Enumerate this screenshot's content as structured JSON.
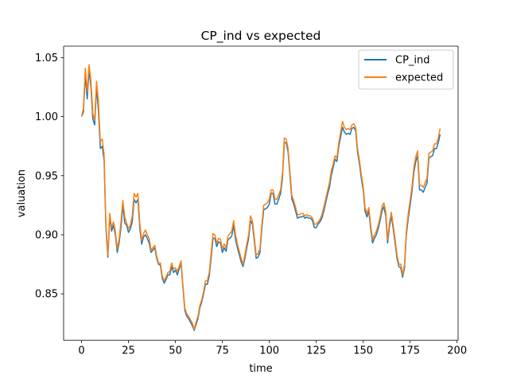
{
  "chart_data": {
    "type": "line",
    "title": "CP_ind vs expected",
    "xlabel": "time",
    "ylabel": "valuation",
    "xlim": [
      -9.55,
      200.55
    ],
    "ylim": [
      0.8106,
      1.0597
    ],
    "x_ticks": [
      0,
      25,
      50,
      75,
      100,
      125,
      150,
      175,
      200
    ],
    "x_tick_labels": [
      "0",
      "25",
      "50",
      "75",
      "100",
      "125",
      "150",
      "175",
      "200"
    ],
    "y_ticks": [
      0.85,
      0.9,
      0.95,
      1.0,
      1.05
    ],
    "y_tick_labels": [
      "0.85",
      "0.90",
      "0.95",
      "1.00",
      "1.05"
    ],
    "grid": false,
    "legend_position": "top-right",
    "x": [
      0,
      1,
      2,
      3,
      4,
      5,
      6,
      7,
      8,
      9,
      10,
      11,
      12,
      13,
      14,
      15,
      16,
      17,
      18,
      19,
      20,
      21,
      22,
      23,
      24,
      25,
      26,
      27,
      28,
      29,
      30,
      31,
      32,
      33,
      34,
      35,
      36,
      37,
      38,
      39,
      40,
      41,
      42,
      43,
      44,
      45,
      46,
      47,
      48,
      49,
      50,
      51,
      52,
      53,
      54,
      55,
      56,
      57,
      58,
      59,
      60,
      61,
      62,
      63,
      64,
      65,
      66,
      67,
      68,
      69,
      70,
      71,
      72,
      73,
      74,
      75,
      76,
      77,
      78,
      79,
      80,
      81,
      82,
      83,
      84,
      85,
      86,
      87,
      88,
      89,
      90,
      91,
      92,
      93,
      94,
      95,
      96,
      97,
      98,
      99,
      100,
      101,
      102,
      103,
      104,
      105,
      106,
      107,
      108,
      109,
      110,
      111,
      112,
      113,
      114,
      115,
      116,
      117,
      118,
      119,
      120,
      121,
      122,
      123,
      124,
      125,
      126,
      127,
      128,
      129,
      130,
      131,
      132,
      133,
      134,
      135,
      136,
      137,
      138,
      139,
      140,
      141,
      142,
      143,
      144,
      145,
      146,
      147,
      148,
      149,
      150,
      151,
      152,
      153,
      154,
      155,
      156,
      157,
      158,
      159,
      160,
      161,
      162,
      163,
      164,
      165,
      166,
      167,
      168,
      169,
      170,
      171,
      172,
      173,
      174,
      175,
      176,
      177,
      178,
      179,
      180,
      181,
      182,
      183,
      184,
      185,
      186,
      187,
      188,
      189,
      190,
      191
    ],
    "series": [
      {
        "name": "CP_ind",
        "color": "#1f77b4",
        "values": [
          1.0,
          1.004,
          1.035,
          1.015,
          1.04,
          1.025,
          0.998,
          0.993,
          1.025,
          1.005,
          0.973,
          0.975,
          0.963,
          0.905,
          0.881,
          0.915,
          0.903,
          0.908,
          0.9,
          0.885,
          0.893,
          0.906,
          0.925,
          0.91,
          0.908,
          0.902,
          0.905,
          0.911,
          0.93,
          0.927,
          0.93,
          0.906,
          0.892,
          0.898,
          0.9,
          0.897,
          0.893,
          0.885,
          0.887,
          0.889,
          0.88,
          0.875,
          0.874,
          0.863,
          0.859,
          0.862,
          0.866,
          0.866,
          0.873,
          0.868,
          0.87,
          0.866,
          0.871,
          0.876,
          0.855,
          0.836,
          0.831,
          0.829,
          0.826,
          0.823,
          0.819,
          0.824,
          0.829,
          0.838,
          0.843,
          0.85,
          0.858,
          0.858,
          0.865,
          0.88,
          0.897,
          0.897,
          0.89,
          0.894,
          0.893,
          0.885,
          0.889,
          0.886,
          0.896,
          0.897,
          0.899,
          0.908,
          0.896,
          0.889,
          0.883,
          0.877,
          0.873,
          0.88,
          0.889,
          0.897,
          0.912,
          0.909,
          0.895,
          0.88,
          0.881,
          0.885,
          0.905,
          0.921,
          0.922,
          0.923,
          0.926,
          0.935,
          0.935,
          0.926,
          0.926,
          0.93,
          0.935,
          0.948,
          0.978,
          0.978,
          0.97,
          0.95,
          0.93,
          0.926,
          0.92,
          0.914,
          0.915,
          0.915,
          0.916,
          0.914,
          0.915,
          0.914,
          0.914,
          0.912,
          0.906,
          0.906,
          0.909,
          0.911,
          0.914,
          0.92,
          0.927,
          0.934,
          0.94,
          0.95,
          0.957,
          0.964,
          0.962,
          0.975,
          0.983,
          0.991,
          0.987,
          0.985,
          0.986,
          0.985,
          0.99,
          0.991,
          0.988,
          0.97,
          0.96,
          0.948,
          0.938,
          0.92,
          0.915,
          0.92,
          0.905,
          0.893,
          0.897,
          0.9,
          0.905,
          0.912,
          0.92,
          0.924,
          0.916,
          0.893,
          0.907,
          0.916,
          0.905,
          0.893,
          0.88,
          0.873,
          0.872,
          0.864,
          0.872,
          0.9,
          0.914,
          0.925,
          0.937,
          0.953,
          0.962,
          0.967,
          0.938,
          0.938,
          0.936,
          0.94,
          0.944,
          0.965,
          0.966,
          0.967,
          0.973,
          0.973,
          0.978,
          0.985
        ]
      },
      {
        "name": "expected",
        "color": "#ff7f0e",
        "values": [
          1.0,
          1.007,
          1.041,
          1.021,
          1.044,
          1.03,
          1.003,
          0.997,
          1.03,
          1.012,
          0.979,
          0.981,
          0.968,
          0.908,
          0.883,
          0.918,
          0.906,
          0.911,
          0.903,
          0.888,
          0.896,
          0.911,
          0.929,
          0.915,
          0.91,
          0.905,
          0.908,
          0.916,
          0.935,
          0.932,
          0.935,
          0.91,
          0.895,
          0.901,
          0.904,
          0.9,
          0.897,
          0.887,
          0.889,
          0.891,
          0.882,
          0.876,
          0.876,
          0.865,
          0.861,
          0.864,
          0.868,
          0.869,
          0.876,
          0.871,
          0.872,
          0.869,
          0.873,
          0.878,
          0.857,
          0.838,
          0.833,
          0.831,
          0.828,
          0.825,
          0.82,
          0.826,
          0.831,
          0.84,
          0.845,
          0.852,
          0.861,
          0.861,
          0.868,
          0.884,
          0.901,
          0.9,
          0.893,
          0.897,
          0.896,
          0.888,
          0.892,
          0.889,
          0.899,
          0.901,
          0.903,
          0.912,
          0.9,
          0.892,
          0.886,
          0.88,
          0.875,
          0.883,
          0.892,
          0.9,
          0.916,
          0.912,
          0.898,
          0.883,
          0.884,
          0.888,
          0.908,
          0.925,
          0.926,
          0.927,
          0.93,
          0.938,
          0.938,
          0.93,
          0.93,
          0.934,
          0.938,
          0.952,
          0.982,
          0.981,
          0.973,
          0.953,
          0.933,
          0.929,
          0.923,
          0.917,
          0.917,
          0.918,
          0.918,
          0.916,
          0.917,
          0.916,
          0.916,
          0.914,
          0.909,
          0.909,
          0.911,
          0.913,
          0.917,
          0.923,
          0.93,
          0.937,
          0.944,
          0.954,
          0.96,
          0.967,
          0.965,
          0.978,
          0.987,
          0.996,
          0.991,
          0.989,
          0.99,
          0.989,
          0.993,
          0.994,
          0.991,
          0.973,
          0.963,
          0.951,
          0.941,
          0.923,
          0.918,
          0.923,
          0.908,
          0.896,
          0.9,
          0.903,
          0.908,
          0.915,
          0.924,
          0.927,
          0.92,
          0.896,
          0.91,
          0.919,
          0.908,
          0.896,
          0.883,
          0.875,
          0.875,
          0.866,
          0.875,
          0.903,
          0.918,
          0.929,
          0.941,
          0.957,
          0.966,
          0.971,
          0.942,
          0.942,
          0.94,
          0.944,
          0.948,
          0.969,
          0.97,
          0.971,
          0.977,
          0.977,
          0.982,
          0.99
        ]
      }
    ]
  }
}
